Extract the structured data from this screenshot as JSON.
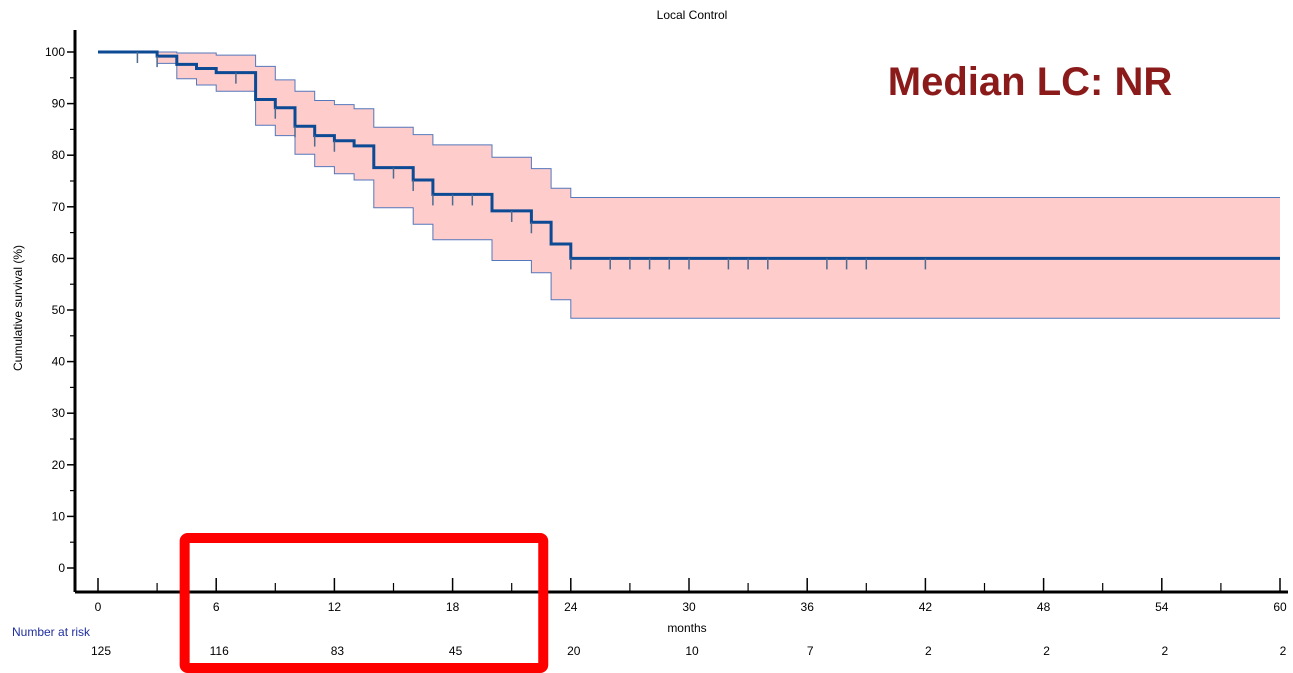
{
  "chart_data": {
    "type": "line",
    "title": "Local  Control",
    "xlabel": "months",
    "ylabel": "Cumulative survival (%)",
    "xlim": [
      0,
      60
    ],
    "ylim": [
      0,
      100
    ],
    "x_ticks": [
      0,
      6,
      12,
      18,
      24,
      30,
      36,
      42,
      48,
      54,
      60
    ],
    "y_ticks": [
      0,
      10,
      20,
      30,
      40,
      50,
      60,
      70,
      80,
      90,
      100
    ],
    "annotation": "Median LC: NR",
    "survival_steps": [
      [
        0,
        100
      ],
      [
        3,
        99.2
      ],
      [
        4,
        97.6
      ],
      [
        5,
        96.8
      ],
      [
        6,
        96
      ],
      [
        8,
        90.8
      ],
      [
        9,
        89.2
      ],
      [
        10,
        85.6
      ],
      [
        11,
        83.8
      ],
      [
        12,
        82.8
      ],
      [
        13,
        81.8
      ],
      [
        14,
        77.6
      ],
      [
        16,
        75.2
      ],
      [
        17,
        72.4
      ],
      [
        20,
        69.2
      ],
      [
        22,
        67
      ],
      [
        23,
        62.8
      ],
      [
        24,
        60
      ],
      [
        60,
        60
      ]
    ],
    "ci_upper_steps": [
      [
        0,
        100
      ],
      [
        3,
        100
      ],
      [
        4,
        99.8
      ],
      [
        6,
        99.4
      ],
      [
        8,
        97.2
      ],
      [
        9,
        94.6
      ],
      [
        10,
        92.4
      ],
      [
        11,
        90.6
      ],
      [
        12,
        89.8
      ],
      [
        13,
        89
      ],
      [
        14,
        85.4
      ],
      [
        16,
        84
      ],
      [
        17,
        82
      ],
      [
        20,
        79.6
      ],
      [
        22,
        77.4
      ],
      [
        23,
        73.6
      ],
      [
        24,
        71.8
      ],
      [
        60,
        71.8
      ]
    ],
    "ci_lower_steps": [
      [
        0,
        100
      ],
      [
        3,
        97.8
      ],
      [
        4,
        94.8
      ],
      [
        5,
        93.6
      ],
      [
        6,
        92.4
      ],
      [
        8,
        85.8
      ],
      [
        9,
        83.8
      ],
      [
        10,
        80.2
      ],
      [
        11,
        77.8
      ],
      [
        12,
        76.4
      ],
      [
        13,
        75.2
      ],
      [
        14,
        69.8
      ],
      [
        16,
        66.6
      ],
      [
        17,
        63.6
      ],
      [
        20,
        59.6
      ],
      [
        22,
        57.2
      ],
      [
        23,
        52
      ],
      [
        24,
        48.4
      ],
      [
        60,
        48.4
      ]
    ],
    "censor_marks": [
      [
        2,
        100
      ],
      [
        3,
        99.2
      ],
      [
        7,
        96
      ],
      [
        9,
        89.2
      ],
      [
        10,
        85.6
      ],
      [
        11,
        83.8
      ],
      [
        12,
        82.8
      ],
      [
        15,
        77.6
      ],
      [
        16,
        75.2
      ],
      [
        17,
        72.4
      ],
      [
        18,
        72.4
      ],
      [
        19,
        72.4
      ],
      [
        21,
        69.2
      ],
      [
        22,
        67
      ],
      [
        24,
        60
      ],
      [
        26,
        60
      ],
      [
        27,
        60
      ],
      [
        28,
        60
      ],
      [
        29,
        60
      ],
      [
        30,
        60
      ],
      [
        32,
        60
      ],
      [
        33,
        60
      ],
      [
        34,
        60
      ],
      [
        37,
        60
      ],
      [
        38,
        60
      ],
      [
        39,
        60
      ],
      [
        42,
        60
      ]
    ],
    "number_at_risk": {
      "label": "Number at risk",
      "times": [
        0,
        6,
        12,
        18,
        24,
        30,
        36,
        42,
        48,
        54,
        60
      ],
      "counts": [
        "125",
        "116",
        "83",
        "45",
        "20",
        "10",
        "7",
        "2",
        "2",
        "2",
        "2"
      ]
    },
    "highlight_box": {
      "x_from": 4.5,
      "x_to": 22.5
    },
    "colors": {
      "curve": "#0d4a94",
      "ci_fill": "#ffcccc",
      "ci_edge": "#5577bb",
      "annotation": "#8b1a1a",
      "highlight": "#ff0000",
      "risk_label": "#1f2f9f",
      "axis": "#000000"
    }
  }
}
